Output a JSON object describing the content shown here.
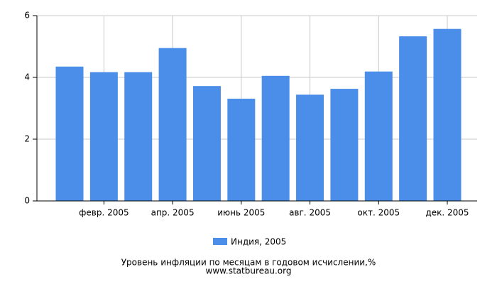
{
  "chart_data": {
    "type": "bar",
    "categories": [
      null,
      "февр. 2005",
      null,
      "апр. 2005",
      null,
      "июнь 2005",
      null,
      "авг. 2005",
      null,
      "окт. 2005",
      null,
      "дек. 2005"
    ],
    "series": [
      {
        "name": "Индия, 2005",
        "color": "#4a8ee9",
        "values": [
          4.35,
          4.17,
          4.17,
          4.95,
          3.72,
          3.31,
          4.05,
          3.44,
          3.63,
          4.19,
          5.33,
          5.57
        ]
      }
    ],
    "ylim": [
      0,
      6
    ],
    "yticks": [
      0,
      2,
      4,
      6
    ],
    "grid": true,
    "title": "Уровень инфляции по месяцам в годовом исчислении,%",
    "source": "www.statbureau.org"
  }
}
